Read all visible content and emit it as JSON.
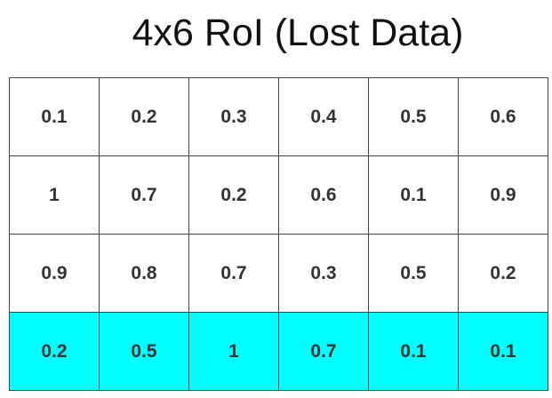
{
  "title": "4x6 RoI (Lost Data)",
  "highlight_color": "#00ffff",
  "highlighted_row": 3,
  "grid": [
    [
      "0.1",
      "0.2",
      "0.3",
      "0.4",
      "0.5",
      "0.6"
    ],
    [
      "1",
      "0.7",
      "0.2",
      "0.6",
      "0.1",
      "0.9"
    ],
    [
      "0.9",
      "0.8",
      "0.7",
      "0.3",
      "0.5",
      "0.2"
    ],
    [
      "0.2",
      "0.5",
      "1",
      "0.7",
      "0.1",
      "0.1"
    ]
  ]
}
